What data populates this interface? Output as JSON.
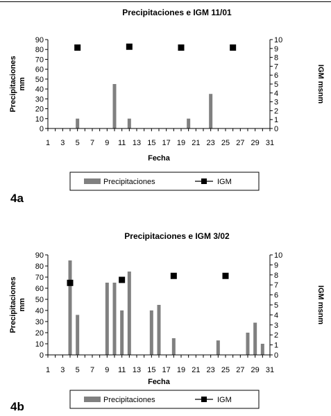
{
  "colors": {
    "bar": "#808080",
    "marker": "#000000",
    "axis": "#000000"
  },
  "chart_data": [
    {
      "type": "bar",
      "panel_label": "4a",
      "title": "Precipitaciones e IGM  11/01",
      "xlabel": "Fecha",
      "ylabel_lines": [
        "Precipitaciones",
        "mm"
      ],
      "y2label": "IGM msnm",
      "x_tick_labels": [
        "1",
        "3",
        "5",
        "7",
        "9",
        "11",
        "13",
        "15",
        "17",
        "19",
        "21",
        "23",
        "25",
        "27",
        "29",
        "31"
      ],
      "xlim": [
        1,
        31
      ],
      "ylim": [
        0,
        90
      ],
      "y_ticks": [
        0,
        10,
        20,
        30,
        40,
        50,
        60,
        70,
        80,
        90
      ],
      "y2lim": [
        0,
        10
      ],
      "y2_ticks": [
        0,
        1,
        2,
        3,
        4,
        5,
        6,
        7,
        8,
        9,
        10
      ],
      "grid": false,
      "legend_position": "bottom",
      "legend": {
        "bar_label": "Precipitaciones",
        "marker_label": "IGM"
      },
      "series": [
        {
          "name": "Precipitaciones",
          "kind": "bar",
          "axis": "left",
          "x": [
            5,
            10,
            12,
            20,
            23
          ],
          "values": [
            10,
            45,
            10,
            10,
            35
          ]
        },
        {
          "name": "IGM",
          "kind": "marker",
          "axis": "right",
          "x": [
            5,
            12,
            19,
            26
          ],
          "values": [
            9.1,
            9.2,
            9.1,
            9.1
          ]
        }
      ]
    },
    {
      "type": "bar",
      "panel_label": "4b",
      "title": "Precipitaciones e IGM  3/02",
      "xlabel": "Fecha",
      "ylabel_lines": [
        "Precipitaciones",
        "mm"
      ],
      "y2label": "IGM msnm",
      "x_tick_labels": [
        "1",
        "3",
        "5",
        "7",
        "9",
        "11",
        "13",
        "15",
        "17",
        "19",
        "21",
        "23",
        "25",
        "27",
        "29",
        "31"
      ],
      "xlim": [
        1,
        31
      ],
      "ylim": [
        0,
        90
      ],
      "y_ticks": [
        0,
        10,
        20,
        30,
        40,
        50,
        60,
        70,
        80,
        90
      ],
      "y2lim": [
        0,
        10
      ],
      "y2_ticks": [
        0,
        1,
        2,
        3,
        4,
        5,
        6,
        7,
        8,
        9,
        10
      ],
      "grid": false,
      "legend_position": "bottom",
      "legend": {
        "bar_label": "Precipitaciones",
        "marker_label": "IGM"
      },
      "series": [
        {
          "name": "Precipitaciones",
          "kind": "bar",
          "axis": "left",
          "x": [
            4,
            5,
            9,
            10,
            11,
            12,
            15,
            16,
            18,
            24,
            28,
            29,
            30
          ],
          "values": [
            85,
            36,
            65,
            65,
            40,
            75,
            40,
            45,
            15,
            13,
            20,
            29,
            10
          ]
        },
        {
          "name": "IGM",
          "kind": "marker",
          "axis": "right",
          "x": [
            4,
            11,
            18,
            25
          ],
          "values": [
            7.2,
            7.5,
            7.9,
            7.9
          ]
        }
      ]
    }
  ]
}
